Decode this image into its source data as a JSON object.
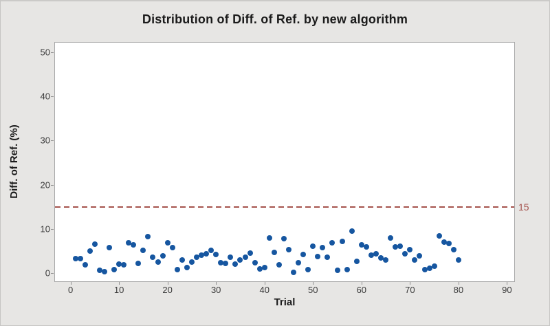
{
  "chart_data": {
    "type": "scatter",
    "title": "Distribution of Diff. of Ref. by new algorithm",
    "xlabel": "Trial",
    "ylabel": "Diff. of Ref. (%)",
    "x_ticks": [
      0,
      10,
      20,
      30,
      40,
      50,
      60,
      70,
      80,
      90
    ],
    "y_ticks": [
      0,
      10,
      20,
      30,
      40,
      50
    ],
    "xlim": [
      -3.2,
      91.5
    ],
    "ylim": [
      -1.9,
      52.2
    ],
    "grid": "off",
    "legend": "none",
    "reference_line": {
      "value": 15,
      "label": "15",
      "color": "#a5524c"
    },
    "series": [
      {
        "name": "Diff. of Ref.",
        "marker": "circle",
        "color": "#1656a0",
        "x": [
          1,
          2,
          3,
          4,
          5,
          6,
          7,
          8,
          9,
          10,
          11,
          12,
          13,
          14,
          15,
          16,
          17,
          18,
          19,
          20,
          21,
          22,
          23,
          24,
          25,
          26,
          27,
          28,
          29,
          30,
          31,
          32,
          33,
          34,
          35,
          36,
          37,
          38,
          39,
          40,
          41,
          42,
          43,
          44,
          45,
          46,
          47,
          48,
          49,
          50,
          51,
          52,
          53,
          54,
          55,
          56,
          57,
          58,
          59,
          60,
          61,
          62,
          63,
          64,
          65,
          66,
          67,
          68,
          69,
          70,
          71,
          72,
          73,
          74,
          75,
          76,
          77,
          78,
          79,
          80
        ],
        "y": [
          3.3,
          3.2,
          1.8,
          4.9,
          6.5,
          0.6,
          0.3,
          5.8,
          0.8,
          2.0,
          1.8,
          6.9,
          6.4,
          2.2,
          5.1,
          8.3,
          3.6,
          2.5,
          3.9,
          6.8,
          5.7,
          0.7,
          2.9,
          1.2,
          2.5,
          3.5,
          4.0,
          4.4,
          5.1,
          4.2,
          2.3,
          2.2,
          3.5,
          2.0,
          2.9,
          3.6,
          4.5,
          2.3,
          0.9,
          1.2,
          7.9,
          4.7,
          1.8,
          7.8,
          5.2,
          0.1,
          2.3,
          4.2,
          0.8,
          6.0,
          3.7,
          5.7,
          3.5,
          6.9,
          0.6,
          7.2,
          0.8,
          9.5,
          2.6,
          6.4,
          5.9,
          4.1,
          4.4,
          3.4,
          2.9,
          7.9,
          5.9,
          6.0,
          4.4,
          5.2,
          2.9,
          3.9,
          0.7,
          1.0,
          1.5,
          8.4,
          7.0,
          6.6,
          5.2,
          2.9
        ]
      }
    ],
    "colors": {
      "background": "#e7e6e4",
      "plot_background": "#ffffff",
      "axis_line": "#a8a8a8",
      "tick_text": "#3a3a3a",
      "title_text": "#1b1b1b"
    }
  }
}
